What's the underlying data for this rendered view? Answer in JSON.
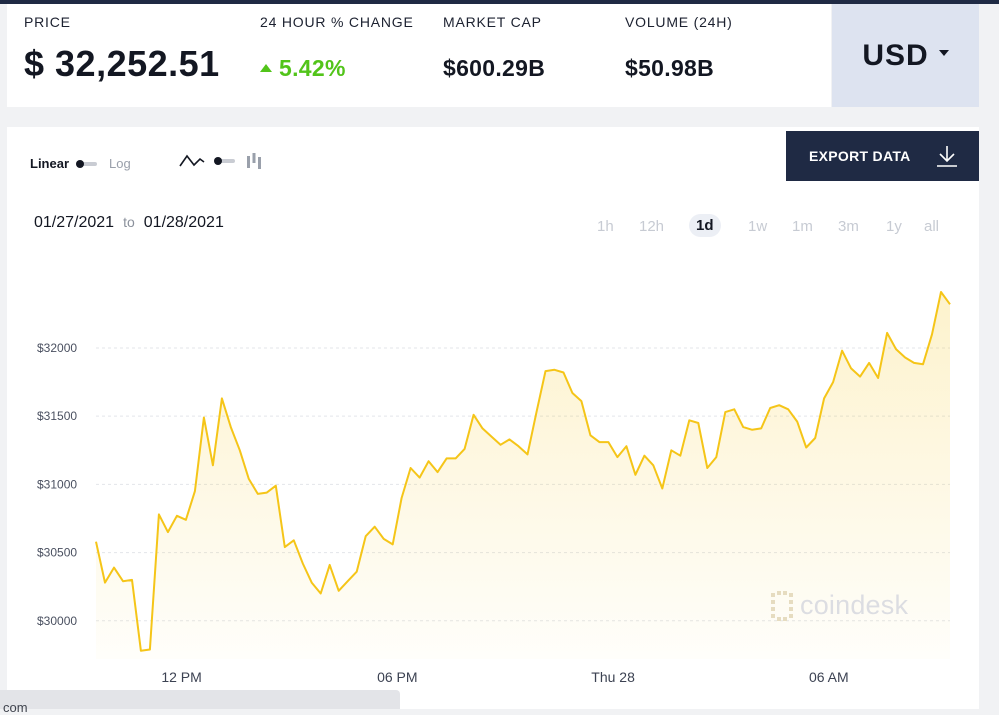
{
  "stats": {
    "price": {
      "label": "PRICE",
      "value": "$ 32,252.51"
    },
    "change": {
      "label": "24 HOUR % CHANGE",
      "value": "5.42%"
    },
    "market_cap": {
      "label": "MARKET CAP",
      "value": "$600.29B"
    },
    "volume": {
      "label": "VOLUME (24H)",
      "value": "$50.98B"
    }
  },
  "currency": {
    "value": "USD"
  },
  "controls": {
    "scale_linear": "Linear",
    "scale_log": "Log",
    "export_label": "EXPORT DATA",
    "range_start": "01/27/2021",
    "range_to": "to",
    "range_end": "01/28/2021",
    "periods": [
      "1h",
      "12h",
      "1d",
      "1w",
      "1m",
      "3m",
      "1y",
      "all"
    ],
    "active_period": "1d"
  },
  "watermark": "coindesk",
  "bottom_text": "com",
  "colors": {
    "line": "#f5c518",
    "accent_up": "#52c41a",
    "navy": "#1f2a44"
  },
  "chart_data": {
    "type": "area",
    "xlabel": "",
    "ylabel": "",
    "ylim": [
      29720,
      32520
    ],
    "yticks": [
      30000,
      30500,
      31000,
      31500,
      32000
    ],
    "ytick_labels": [
      "$30000",
      "$30500",
      "$31000",
      "$31500",
      "$32000"
    ],
    "xticks": [
      3,
      9,
      15,
      21
    ],
    "xtick_labels": [
      "12 PM",
      "06 PM",
      "Thu 28",
      "06 AM"
    ],
    "x_start": 0.62,
    "series": [
      {
        "values": [
          30580,
          30280,
          30390,
          30290,
          30300,
          29780,
          29790,
          30780,
          30650,
          30770,
          30740,
          30950,
          31490,
          31140,
          31630,
          31420,
          31250,
          31040,
          30930,
          30940,
          30990,
          30540,
          30590,
          30420,
          30280,
          30200,
          30410,
          30220,
          30290,
          30360,
          30620,
          30690,
          30600,
          30560,
          30900,
          31120,
          31050,
          31170,
          31090,
          31190,
          31190,
          31260,
          31510,
          31410,
          31350,
          31290,
          31330,
          31280,
          31220,
          31530,
          31830,
          31840,
          31820,
          31670,
          31610,
          31360,
          31310,
          31310,
          31200,
          31280,
          31070,
          31210,
          31140,
          30970,
          31250,
          31210,
          31470,
          31450,
          31120,
          31200,
          31530,
          31550,
          31420,
          31400,
          31410,
          31560,
          31580,
          31550,
          31460,
          31270,
          31340,
          31630,
          31750,
          31980,
          31850,
          31790,
          31890,
          31780,
          32110,
          31990,
          31930,
          31890,
          31880,
          32100,
          32410,
          32320
        ]
      }
    ]
  }
}
